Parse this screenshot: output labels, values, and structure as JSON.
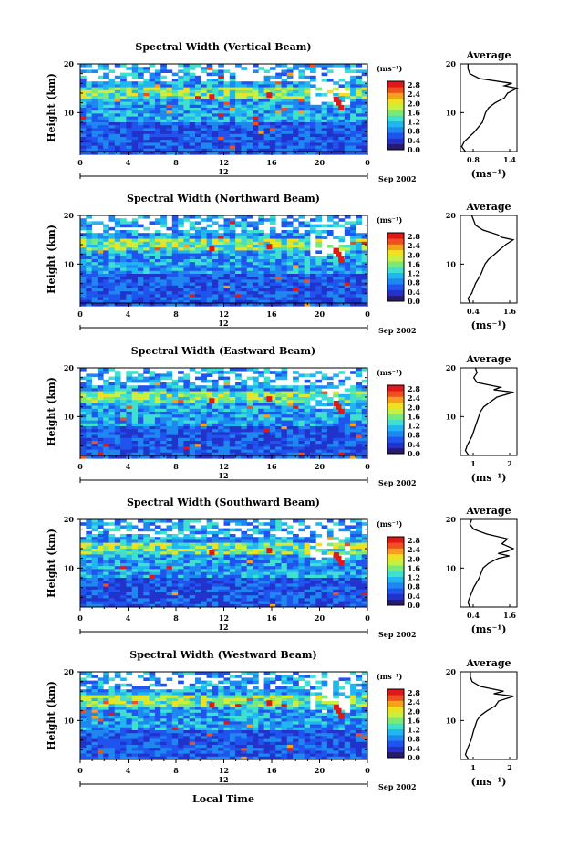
{
  "chart_data": [
    {
      "type": "heatmap",
      "title": "Spectral Width (Vertical Beam)",
      "ylabel": "Height (km)",
      "x": [
        0,
        4,
        8,
        12,
        16,
        20,
        24
      ],
      "x_tick_labels": [
        "0",
        "4",
        "8",
        "12",
        "16",
        "20",
        "0"
      ],
      "y_ticks": [
        10,
        20
      ],
      "ylim": [
        2,
        20
      ],
      "colorbar_unit": "(ms⁻¹)",
      "colorbar_ticks": [
        "2.8",
        "2.4",
        "2.0",
        "1.6",
        "1.2",
        "0.8",
        "0.4",
        "0.0"
      ],
      "date_marker": "12",
      "date_label": "Sep 2002",
      "average": {
        "title": "Average",
        "xlabel": "(ms⁻¹)",
        "x_tick_labels": [
          "0.8",
          "1.4"
        ],
        "xlim": [
          0.6,
          1.5
        ],
        "y_ticks": [
          10,
          20
        ],
        "profile": [
          [
            0.68,
            2
          ],
          [
            0.62,
            3
          ],
          [
            0.66,
            4
          ],
          [
            0.82,
            6
          ],
          [
            0.95,
            8
          ],
          [
            1.0,
            10
          ],
          [
            1.05,
            11
          ],
          [
            1.15,
            12
          ],
          [
            1.3,
            13
          ],
          [
            1.35,
            14
          ],
          [
            1.5,
            15
          ],
          [
            1.3,
            15.5
          ],
          [
            1.42,
            16
          ],
          [
            0.9,
            17
          ],
          [
            0.75,
            18
          ],
          [
            0.72,
            19
          ],
          [
            0.72,
            20
          ]
        ]
      }
    },
    {
      "type": "heatmap",
      "title": "Spectral Width (Northward Beam)",
      "ylabel": "Height (km)",
      "x": [
        0,
        4,
        8,
        12,
        16,
        20,
        24
      ],
      "x_tick_labels": [
        "0",
        "4",
        "8",
        "12",
        "16",
        "20",
        "0"
      ],
      "y_ticks": [
        10,
        20
      ],
      "ylim": [
        2,
        20
      ],
      "colorbar_unit": "(ms⁻¹)",
      "colorbar_ticks": [
        "2.8",
        "2.4",
        "2.0",
        "1.6",
        "1.2",
        "0.8",
        "0.4",
        "0.0"
      ],
      "date_marker": "12",
      "date_label": "Sep 2002",
      "average": {
        "title": "Average",
        "xlabel": "(ms⁻¹)",
        "x_tick_labels": [
          "0.4",
          "1.6"
        ],
        "xlim": [
          0.2,
          1.7
        ],
        "y_ticks": [
          10,
          20
        ],
        "profile": [
          [
            0.45,
            2
          ],
          [
            0.4,
            3
          ],
          [
            0.5,
            4
          ],
          [
            0.6,
            6
          ],
          [
            0.75,
            8
          ],
          [
            0.85,
            10
          ],
          [
            0.95,
            11
          ],
          [
            1.1,
            12
          ],
          [
            1.25,
            13
          ],
          [
            1.4,
            14
          ],
          [
            1.6,
            15
          ],
          [
            1.3,
            15.5
          ],
          [
            1.2,
            16
          ],
          [
            0.8,
            17
          ],
          [
            0.6,
            18
          ],
          [
            0.55,
            19
          ],
          [
            0.5,
            20
          ]
        ]
      }
    },
    {
      "type": "heatmap",
      "title": "Spectral Width (Eastward Beam)",
      "ylabel": "Height (km)",
      "x": [
        0,
        4,
        8,
        12,
        16,
        20,
        24
      ],
      "x_tick_labels": [
        "0",
        "4",
        "8",
        "12",
        "16",
        "20",
        "0"
      ],
      "y_ticks": [
        10,
        20
      ],
      "ylim": [
        2,
        20
      ],
      "colorbar_unit": "(ms⁻¹)",
      "colorbar_ticks": [
        "2.8",
        "2.4",
        "2.0",
        "1.6",
        "1.2",
        "0.8",
        "0.4",
        "0.0"
      ],
      "date_marker": "12",
      "date_label": "Sep 2002",
      "average": {
        "title": "Average",
        "xlabel": "(ms⁻¹)",
        "x_tick_labels": [
          "1",
          "2"
        ],
        "xlim": [
          0.4,
          2.1
        ],
        "y_ticks": [
          10,
          20
        ],
        "profile": [
          [
            0.65,
            2
          ],
          [
            0.55,
            3
          ],
          [
            0.6,
            4
          ],
          [
            0.75,
            6
          ],
          [
            0.85,
            8
          ],
          [
            0.95,
            10
          ],
          [
            1.0,
            11
          ],
          [
            1.1,
            12
          ],
          [
            1.3,
            13
          ],
          [
            1.5,
            14
          ],
          [
            2.0,
            15
          ],
          [
            1.4,
            15.5
          ],
          [
            1.6,
            16
          ],
          [
            0.9,
            17
          ],
          [
            0.8,
            18
          ],
          [
            0.9,
            19
          ],
          [
            0.85,
            20
          ]
        ]
      }
    },
    {
      "type": "heatmap",
      "title": "Spectral Width (Southward Beam)",
      "ylabel": "Height (km)",
      "x": [
        0,
        4,
        8,
        12,
        16,
        20,
        24
      ],
      "x_tick_labels": [
        "0",
        "4",
        "8",
        "12",
        "16",
        "20",
        "0"
      ],
      "y_ticks": [
        10,
        20
      ],
      "ylim": [
        2,
        20
      ],
      "colorbar_unit": "(ms⁻¹)",
      "colorbar_ticks": [
        "2.8",
        "2.4",
        "2.0",
        "1.6",
        "1.2",
        "0.8",
        "0.4",
        "0.0"
      ],
      "date_marker": "12",
      "date_label": "Sep 2002",
      "average": {
        "title": "Average",
        "xlabel": "(ms⁻¹)",
        "x_tick_labels": [
          "0.4",
          "1.6"
        ],
        "xlim": [
          0.2,
          1.7
        ],
        "y_ticks": [
          10,
          20
        ],
        "profile": [
          [
            0.45,
            2
          ],
          [
            0.4,
            3
          ],
          [
            0.45,
            4
          ],
          [
            0.55,
            6
          ],
          [
            0.7,
            8
          ],
          [
            0.8,
            10
          ],
          [
            0.95,
            11
          ],
          [
            1.2,
            12
          ],
          [
            1.5,
            12.5
          ],
          [
            1.2,
            13
          ],
          [
            1.45,
            13.5
          ],
          [
            1.6,
            14
          ],
          [
            1.3,
            15
          ],
          [
            1.45,
            16
          ],
          [
            0.9,
            17
          ],
          [
            0.55,
            18
          ],
          [
            0.45,
            19
          ],
          [
            0.5,
            20
          ]
        ]
      }
    },
    {
      "type": "heatmap",
      "title": "Spectral Width (Westward Beam)",
      "ylabel": "Height (km)",
      "x": [
        0,
        4,
        8,
        12,
        16,
        20,
        24
      ],
      "x_tick_labels": [
        "0",
        "4",
        "8",
        "12",
        "16",
        "20",
        "0"
      ],
      "y_ticks": [
        10,
        20
      ],
      "ylim": [
        2,
        20
      ],
      "colorbar_unit": "(ms⁻¹)",
      "colorbar_ticks": [
        "2.8",
        "2.4",
        "2.0",
        "1.6",
        "1.2",
        "0.8",
        "0.4",
        "0.0"
      ],
      "date_marker": "12",
      "date_label": "Sep 2002",
      "average": {
        "title": "Average",
        "xlabel": "(ms⁻¹)",
        "x_tick_labels": [
          "1",
          "2"
        ],
        "xlim": [
          0.4,
          2.1
        ],
        "y_ticks": [
          10,
          20
        ],
        "profile": [
          [
            0.65,
            2
          ],
          [
            0.55,
            3
          ],
          [
            0.6,
            4
          ],
          [
            0.72,
            6
          ],
          [
            0.8,
            8
          ],
          [
            0.9,
            10
          ],
          [
            1.0,
            11
          ],
          [
            1.2,
            12
          ],
          [
            1.45,
            13
          ],
          [
            1.55,
            14
          ],
          [
            2.0,
            15
          ],
          [
            1.4,
            15.5
          ],
          [
            1.7,
            16
          ],
          [
            1.0,
            17
          ],
          [
            0.75,
            18
          ],
          [
            0.7,
            19
          ],
          [
            0.7,
            20
          ]
        ]
      }
    }
  ],
  "colorscale": [
    "#2a1a6e",
    "#2233cc",
    "#1f55ee",
    "#1e88f0",
    "#20b6f0",
    "#40e0d0",
    "#7be87a",
    "#c8f040",
    "#f0e020",
    "#f7a020",
    "#f05020",
    "#e01818"
  ],
  "xlabel": "Local Time"
}
